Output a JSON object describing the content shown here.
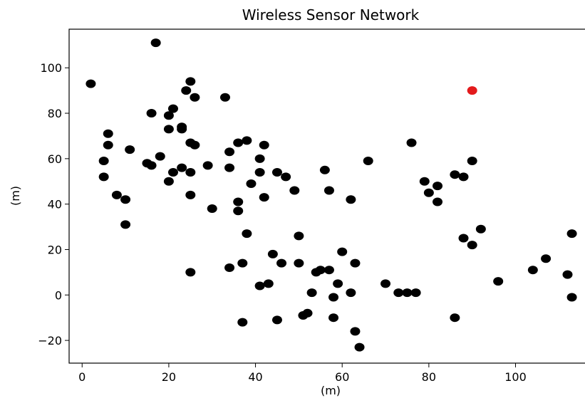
{
  "chart_data": {
    "type": "scatter",
    "title": "Wireless Sensor Network",
    "xlabel": "(m)",
    "ylabel": "(m)",
    "xlim": [
      -3,
      118
    ],
    "ylim": [
      -30,
      117
    ],
    "xticks": [
      0,
      20,
      40,
      60,
      80,
      100
    ],
    "yticks": [
      -20,
      0,
      20,
      40,
      60,
      80,
      100
    ],
    "xtick_labels": [
      "0",
      "20",
      "40",
      "60",
      "80",
      "100"
    ],
    "ytick_labels": [
      "−20",
      "0",
      "20",
      "40",
      "60",
      "80",
      "100"
    ],
    "grid": false,
    "legend": "none",
    "series": [
      {
        "color": "#000000",
        "points": [
          [
            2,
            93
          ],
          [
            17,
            111
          ],
          [
            5,
            59
          ],
          [
            6,
            66
          ],
          [
            6,
            71
          ],
          [
            5,
            52
          ],
          [
            8,
            44
          ],
          [
            10,
            42
          ],
          [
            11,
            64
          ],
          [
            10,
            31
          ],
          [
            15,
            58
          ],
          [
            16,
            57
          ],
          [
            16,
            80
          ],
          [
            18,
            61
          ],
          [
            20,
            50
          ],
          [
            20,
            73
          ],
          [
            20,
            79
          ],
          [
            21,
            82
          ],
          [
            21,
            54
          ],
          [
            23,
            56
          ],
          [
            23,
            74
          ],
          [
            23,
            73
          ],
          [
            24,
            90
          ],
          [
            25,
            94
          ],
          [
            25,
            67
          ],
          [
            25,
            54
          ],
          [
            25,
            44
          ],
          [
            26,
            66
          ],
          [
            26,
            87
          ],
          [
            25,
            10
          ],
          [
            29,
            57
          ],
          [
            30,
            38
          ],
          [
            33,
            87
          ],
          [
            34,
            56
          ],
          [
            34,
            63
          ],
          [
            36,
            67
          ],
          [
            36,
            41
          ],
          [
            36,
            37
          ],
          [
            37,
            14
          ],
          [
            38,
            68
          ],
          [
            38,
            27
          ],
          [
            39,
            49
          ],
          [
            41,
            54
          ],
          [
            41,
            60
          ],
          [
            42,
            66
          ],
          [
            42,
            43
          ],
          [
            45,
            54
          ],
          [
            47,
            52
          ],
          [
            49,
            46
          ],
          [
            34,
            12
          ],
          [
            37,
            -12
          ],
          [
            41,
            4
          ],
          [
            43,
            5
          ],
          [
            44,
            18
          ],
          [
            45,
            -11
          ],
          [
            46,
            14
          ],
          [
            50,
            14
          ],
          [
            50,
            26
          ],
          [
            51,
            -9
          ],
          [
            52,
            -8
          ],
          [
            53,
            1
          ],
          [
            54,
            10
          ],
          [
            55,
            11
          ],
          [
            56,
            55
          ],
          [
            57,
            46
          ],
          [
            57,
            11
          ],
          [
            58,
            -1
          ],
          [
            58,
            -10
          ],
          [
            59,
            5
          ],
          [
            60,
            19
          ],
          [
            62,
            42
          ],
          [
            62,
            1
          ],
          [
            63,
            14
          ],
          [
            63,
            -16
          ],
          [
            64,
            -23
          ],
          [
            66,
            59
          ],
          [
            70,
            5
          ],
          [
            73,
            1
          ],
          [
            75,
            1
          ],
          [
            77,
            1
          ],
          [
            76,
            67
          ],
          [
            79,
            50
          ],
          [
            80,
            45
          ],
          [
            82,
            48
          ],
          [
            82,
            41
          ],
          [
            86,
            53
          ],
          [
            86,
            -10
          ],
          [
            88,
            52
          ],
          [
            88,
            25
          ],
          [
            90,
            59
          ],
          [
            90,
            22
          ],
          [
            92,
            29
          ],
          [
            96,
            6
          ],
          [
            104,
            11
          ],
          [
            107,
            16
          ],
          [
            112,
            9
          ],
          [
            113,
            -1
          ],
          [
            113,
            27
          ]
        ]
      },
      {
        "color": "#e31a1c",
        "points": [
          [
            90,
            90
          ]
        ]
      }
    ]
  }
}
